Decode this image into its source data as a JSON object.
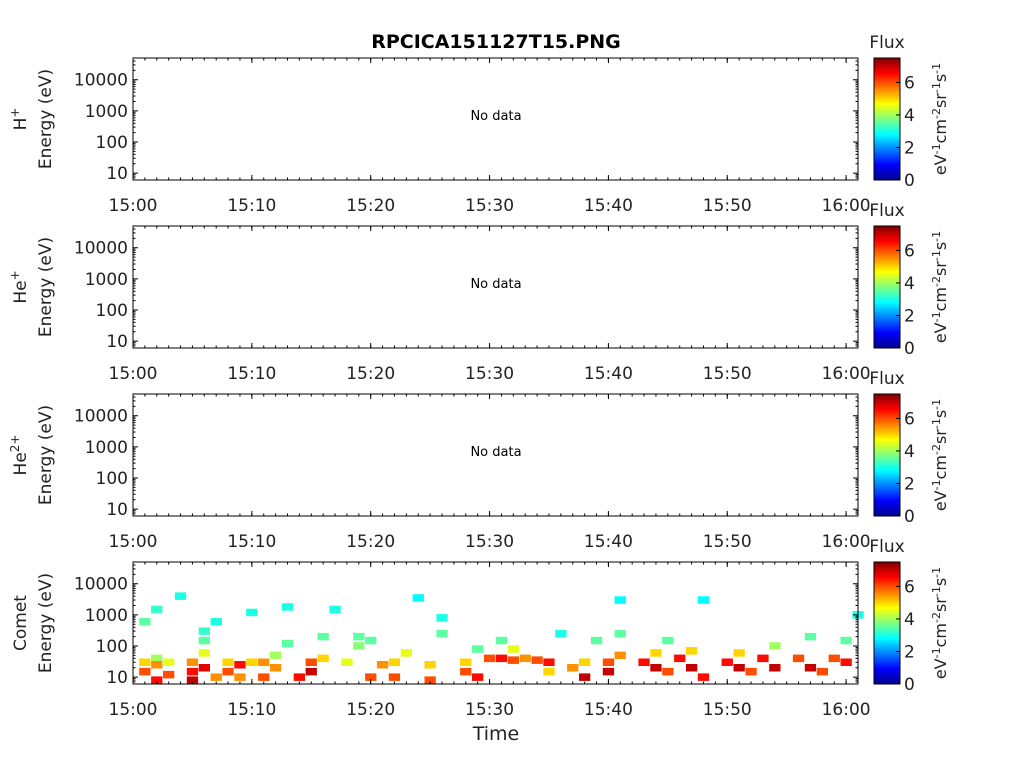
{
  "figure": {
    "title": "RPCICA151127T15.PNG",
    "xlabel": "Time",
    "colorbar_label": "Flux",
    "colorbar_units": "eV-1cm-2sr-1s-1"
  },
  "colors": {
    "axis": "#000000",
    "text": "#222222",
    "background": "#ffffff",
    "colormap": [
      "#00008f",
      "#0000ff",
      "#0080ff",
      "#00ffff",
      "#80ff80",
      "#ffff00",
      "#ff8000",
      "#ff0000",
      "#800000"
    ]
  },
  "chart_data": [
    {
      "type": "heatmap",
      "species": "H",
      "species_sup": "+",
      "ylabel": "Energy (eV)",
      "xlabel": "",
      "message": "No data",
      "x_range": [
        "15:00",
        "16:01"
      ],
      "y_scale": "log",
      "y_range": [
        6,
        50000
      ],
      "x_ticks": [
        "15:00",
        "15:10",
        "15:20",
        "15:30",
        "15:40",
        "15:50",
        "16:00"
      ],
      "y_ticks": [
        10,
        100,
        1000,
        10000
      ],
      "y_tick_labels": [
        "10",
        "100",
        "1000",
        "10000"
      ],
      "colorbar": {
        "label": "Flux",
        "range": [
          0,
          7.5
        ],
        "ticks": [
          0,
          2,
          4,
          6
        ]
      },
      "points": []
    },
    {
      "type": "heatmap",
      "species": "He",
      "species_sup": "+",
      "ylabel": "Energy (eV)",
      "xlabel": "",
      "message": "No data",
      "x_range": [
        "15:00",
        "16:01"
      ],
      "y_scale": "log",
      "y_range": [
        6,
        50000
      ],
      "x_ticks": [
        "15:00",
        "15:10",
        "15:20",
        "15:30",
        "15:40",
        "15:50",
        "16:00"
      ],
      "y_ticks": [
        10,
        100,
        1000,
        10000
      ],
      "y_tick_labels": [
        "10",
        "100",
        "1000",
        "10000"
      ],
      "colorbar": {
        "label": "Flux",
        "range": [
          0,
          7.5
        ],
        "ticks": [
          0,
          2,
          4,
          6
        ]
      },
      "points": []
    },
    {
      "type": "heatmap",
      "species": "He",
      "species_sup": "2+",
      "ylabel": "Energy (eV)",
      "xlabel": "",
      "message": "No data",
      "x_range": [
        "15:00",
        "16:01"
      ],
      "y_scale": "log",
      "y_range": [
        6,
        50000
      ],
      "x_ticks": [
        "15:00",
        "15:10",
        "15:20",
        "15:30",
        "15:40",
        "15:50",
        "16:00"
      ],
      "y_ticks": [
        10,
        100,
        1000,
        10000
      ],
      "y_tick_labels": [
        "10",
        "100",
        "1000",
        "10000"
      ],
      "colorbar": {
        "label": "Flux",
        "range": [
          0,
          7.5
        ],
        "ticks": [
          0,
          2,
          4,
          6
        ]
      },
      "points": []
    },
    {
      "type": "heatmap",
      "species": "Comet",
      "species_sup": "",
      "ylabel": "Energy (eV)",
      "xlabel": "Time",
      "message": "",
      "x_range": [
        "15:00",
        "16:01"
      ],
      "y_scale": "log",
      "y_range": [
        6,
        50000
      ],
      "x_ticks": [
        "15:00",
        "15:10",
        "15:20",
        "15:30",
        "15:40",
        "15:50",
        "16:00"
      ],
      "y_ticks": [
        10,
        100,
        1000,
        10000
      ],
      "y_tick_labels": [
        "10",
        "100",
        "1000",
        "10000"
      ],
      "colorbar": {
        "label": "Flux",
        "range": [
          0,
          7.5
        ],
        "ticks": [
          0,
          2,
          4,
          6
        ]
      },
      "points": [
        {
          "t": "15:01",
          "e": 30,
          "v": 5.0
        },
        {
          "t": "15:01",
          "e": 15,
          "v": 6.0
        },
        {
          "t": "15:02",
          "e": 40,
          "v": 4.0
        },
        {
          "t": "15:02",
          "e": 8,
          "v": 6.5
        },
        {
          "t": "15:02",
          "e": 25,
          "v": 5.5
        },
        {
          "t": "15:03",
          "e": 12,
          "v": 6.0
        },
        {
          "t": "15:03",
          "e": 30,
          "v": 4.5
        },
        {
          "t": "15:01",
          "e": 600,
          "v": 3.5
        },
        {
          "t": "15:02",
          "e": 1500,
          "v": 3.2
        },
        {
          "t": "15:04",
          "e": 4000,
          "v": 3.0
        },
        {
          "t": "15:05",
          "e": 8,
          "v": 7.0
        },
        {
          "t": "15:05",
          "e": 15,
          "v": 6.5
        },
        {
          "t": "15:05",
          "e": 30,
          "v": 5.5
        },
        {
          "t": "15:06",
          "e": 60,
          "v": 4.5
        },
        {
          "t": "15:06",
          "e": 150,
          "v": 3.5
        },
        {
          "t": "15:06",
          "e": 300,
          "v": 3.2
        },
        {
          "t": "15:06",
          "e": 20,
          "v": 6.8
        },
        {
          "t": "15:07",
          "e": 10,
          "v": 5.5
        },
        {
          "t": "15:07",
          "e": 600,
          "v": 3.0
        },
        {
          "t": "15:08",
          "e": 30,
          "v": 5.0
        },
        {
          "t": "15:08",
          "e": 15,
          "v": 6.0
        },
        {
          "t": "15:09",
          "e": 25,
          "v": 6.5
        },
        {
          "t": "15:09",
          "e": 10,
          "v": 5.5
        },
        {
          "t": "15:10",
          "e": 30,
          "v": 5.0
        },
        {
          "t": "15:10",
          "e": 1200,
          "v": 3.0
        },
        {
          "t": "15:11",
          "e": 10,
          "v": 6.0
        },
        {
          "t": "15:11",
          "e": 30,
          "v": 5.5
        },
        {
          "t": "15:12",
          "e": 50,
          "v": 4.0
        },
        {
          "t": "15:12",
          "e": 20,
          "v": 5.5
        },
        {
          "t": "15:13",
          "e": 120,
          "v": 3.5
        },
        {
          "t": "15:13",
          "e": 1800,
          "v": 3.0
        },
        {
          "t": "15:14",
          "e": 10,
          "v": 6.5
        },
        {
          "t": "15:15",
          "e": 15,
          "v": 7.0
        },
        {
          "t": "15:15",
          "e": 30,
          "v": 6.0
        },
        {
          "t": "15:16",
          "e": 40,
          "v": 5.0
        },
        {
          "t": "15:16",
          "e": 200,
          "v": 3.5
        },
        {
          "t": "15:17",
          "e": 1500,
          "v": 3.0
        },
        {
          "t": "15:18",
          "e": 30,
          "v": 4.5
        },
        {
          "t": "15:19",
          "e": 100,
          "v": 3.8
        },
        {
          "t": "15:19",
          "e": 200,
          "v": 3.5
        },
        {
          "t": "15:20",
          "e": 10,
          "v": 6.0
        },
        {
          "t": "15:20",
          "e": 150,
          "v": 3.5
        },
        {
          "t": "15:21",
          "e": 25,
          "v": 5.5
        },
        {
          "t": "15:22",
          "e": 10,
          "v": 6.0
        },
        {
          "t": "15:22",
          "e": 30,
          "v": 5.0
        },
        {
          "t": "15:23",
          "e": 60,
          "v": 4.5
        },
        {
          "t": "15:24",
          "e": 3500,
          "v": 2.8
        },
        {
          "t": "15:25",
          "e": 8,
          "v": 6.0
        },
        {
          "t": "15:25",
          "e": 25,
          "v": 5.0
        },
        {
          "t": "15:26",
          "e": 250,
          "v": 3.5
        },
        {
          "t": "15:26",
          "e": 800,
          "v": 3.0
        },
        {
          "t": "15:28",
          "e": 15,
          "v": 6.0
        },
        {
          "t": "15:28",
          "e": 30,
          "v": 5.0
        },
        {
          "t": "15:29",
          "e": 10,
          "v": 6.5
        },
        {
          "t": "15:29",
          "e": 80,
          "v": 3.5
        },
        {
          "t": "15:30",
          "e": 40,
          "v": 6.0
        },
        {
          "t": "15:31",
          "e": 40,
          "v": 6.5
        },
        {
          "t": "15:31",
          "e": 150,
          "v": 3.5
        },
        {
          "t": "15:32",
          "e": 35,
          "v": 6.0
        },
        {
          "t": "15:32",
          "e": 80,
          "v": 4.5
        },
        {
          "t": "15:33",
          "e": 40,
          "v": 5.5
        },
        {
          "t": "15:34",
          "e": 35,
          "v": 6.0
        },
        {
          "t": "15:35",
          "e": 30,
          "v": 6.5
        },
        {
          "t": "15:35",
          "e": 15,
          "v": 5.0
        },
        {
          "t": "15:36",
          "e": 250,
          "v": 3.0
        },
        {
          "t": "15:37",
          "e": 20,
          "v": 5.5
        },
        {
          "t": "15:38",
          "e": 10,
          "v": 7.0
        },
        {
          "t": "15:38",
          "e": 30,
          "v": 5.0
        },
        {
          "t": "15:39",
          "e": 150,
          "v": 3.5
        },
        {
          "t": "15:40",
          "e": 30,
          "v": 6.0
        },
        {
          "t": "15:40",
          "e": 15,
          "v": 7.0
        },
        {
          "t": "15:41",
          "e": 50,
          "v": 5.5
        },
        {
          "t": "15:41",
          "e": 250,
          "v": 3.5
        },
        {
          "t": "15:41",
          "e": 3000,
          "v": 2.8
        },
        {
          "t": "15:43",
          "e": 30,
          "v": 6.5
        },
        {
          "t": "15:44",
          "e": 20,
          "v": 7.0
        },
        {
          "t": "15:44",
          "e": 60,
          "v": 5.0
        },
        {
          "t": "15:45",
          "e": 15,
          "v": 6.0
        },
        {
          "t": "15:45",
          "e": 150,
          "v": 3.5
        },
        {
          "t": "15:46",
          "e": 40,
          "v": 6.5
        },
        {
          "t": "15:47",
          "e": 20,
          "v": 7.0
        },
        {
          "t": "15:47",
          "e": 70,
          "v": 5.0
        },
        {
          "t": "15:48",
          "e": 10,
          "v": 6.5
        },
        {
          "t": "15:48",
          "e": 3000,
          "v": 2.8
        },
        {
          "t": "15:50",
          "e": 30,
          "v": 6.5
        },
        {
          "t": "15:51",
          "e": 20,
          "v": 7.0
        },
        {
          "t": "15:51",
          "e": 60,
          "v": 5.0
        },
        {
          "t": "15:52",
          "e": 15,
          "v": 6.0
        },
        {
          "t": "15:53",
          "e": 40,
          "v": 6.5
        },
        {
          "t": "15:54",
          "e": 20,
          "v": 7.0
        },
        {
          "t": "15:54",
          "e": 100,
          "v": 4.0
        },
        {
          "t": "15:56",
          "e": 40,
          "v": 6.0
        },
        {
          "t": "15:57",
          "e": 20,
          "v": 7.0
        },
        {
          "t": "15:57",
          "e": 200,
          "v": 3.5
        },
        {
          "t": "15:58",
          "e": 15,
          "v": 6.0
        },
        {
          "t": "15:59",
          "e": 40,
          "v": 6.0
        },
        {
          "t": "16:00",
          "e": 30,
          "v": 6.5
        },
        {
          "t": "16:00",
          "e": 150,
          "v": 3.5
        },
        {
          "t": "16:01",
          "e": 1000,
          "v": 3.0
        }
      ]
    }
  ]
}
